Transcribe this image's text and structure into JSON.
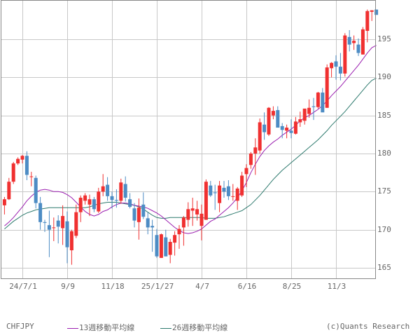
{
  "chart_data": {
    "type": "candlestick",
    "symbol": "CHFJPY",
    "title": "",
    "xlabel": "",
    "ylabel": "",
    "ylim": [
      163.6,
      200.2
    ],
    "y_ticks": [
      165,
      170,
      175,
      180,
      185,
      190,
      195
    ],
    "x_ticks": [
      {
        "label": "24/7/1",
        "index": 4
      },
      {
        "label": "9/9",
        "index": 14
      },
      {
        "label": "11/18",
        "index": 24
      },
      {
        "label": "25/1/27",
        "index": 34
      },
      {
        "label": "4/7",
        "index": 44
      },
      {
        "label": "6/16",
        "index": 54
      },
      {
        "label": "8/25",
        "index": 64
      },
      {
        "label": "11/3",
        "index": 74
      }
    ],
    "grid": true,
    "up_color": "#f03030",
    "down_color": "#4d8cc4",
    "ma13_color": "#9b1fb0",
    "ma26_color": "#2e7a6e",
    "ohlc": [
      [
        173.2,
        174.3,
        172.0,
        174.0
      ],
      [
        174.0,
        176.8,
        173.9,
        176.3
      ],
      [
        176.3,
        178.9,
        176.0,
        178.7
      ],
      [
        178.7,
        179.5,
        178.5,
        179.3
      ],
      [
        179.2,
        179.8,
        178.7,
        179.7
      ],
      [
        179.7,
        180.3,
        176.5,
        177.2
      ],
      [
        177.0,
        177.6,
        175.7,
        177.0
      ],
      [
        176.8,
        177.1,
        172.8,
        173.5
      ],
      [
        173.5,
        174.3,
        170.0,
        171.0
      ],
      [
        171.0,
        171.3,
        169.7,
        170.9
      ],
      [
        170.6,
        172.5,
        166.4,
        170.0
      ],
      [
        170.3,
        171.6,
        168.5,
        170.3
      ],
      [
        171.2,
        171.9,
        168.2,
        170.4
      ],
      [
        170.2,
        173.2,
        168.0,
        171.8
      ],
      [
        171.1,
        172.4,
        165.6,
        167.7
      ],
      [
        167.3,
        170.0,
        165.4,
        169.8
      ],
      [
        169.2,
        173.3,
        168.9,
        172.3
      ],
      [
        172.3,
        174.5,
        171.0,
        174.2
      ],
      [
        173.8,
        174.8,
        173.3,
        174.5
      ],
      [
        173.3,
        174.6,
        171.8,
        174.0
      ],
      [
        174.0,
        174.3,
        172.3,
        172.7
      ],
      [
        172.4,
        175.5,
        172.2,
        175.0
      ],
      [
        175.0,
        177.3,
        174.4,
        175.7
      ],
      [
        175.9,
        176.9,
        173.8,
        174.4
      ],
      [
        174.4,
        175.0,
        172.8,
        173.9
      ],
      [
        173.9,
        175.3,
        172.9,
        173.8
      ],
      [
        173.8,
        176.7,
        173.4,
        176.2
      ],
      [
        176.0,
        177.0,
        173.7,
        174.2
      ],
      [
        174.0,
        174.8,
        172.8,
        173.0
      ],
      [
        172.8,
        173.5,
        170.3,
        171.2
      ],
      [
        171.0,
        174.1,
        168.7,
        172.9
      ],
      [
        173.3,
        174.9,
        171.4,
        171.7
      ],
      [
        171.5,
        172.3,
        169.4,
        170.3
      ],
      [
        170.5,
        171.3,
        167.1,
        170.3
      ],
      [
        169.3,
        170.1,
        166.3,
        166.5
      ],
      [
        166.3,
        169.5,
        166.3,
        169.4
      ],
      [
        169.0,
        170.0,
        166.5,
        166.5
      ],
      [
        166.7,
        168.8,
        165.6,
        168.4
      ],
      [
        168.3,
        169.8,
        166.6,
        169.3
      ],
      [
        169.4,
        170.6,
        167.5,
        170.1
      ],
      [
        170.3,
        171.8,
        167.9,
        171.6
      ],
      [
        171.3,
        173.6,
        170.4,
        172.7
      ],
      [
        172.5,
        174.2,
        170.5,
        172.8
      ],
      [
        172.0,
        173.8,
        171.2,
        172.7
      ],
      [
        170.5,
        173.3,
        168.6,
        172.1
      ],
      [
        171.3,
        176.6,
        171.3,
        176.3
      ],
      [
        175.8,
        176.4,
        174.3,
        174.5
      ],
      [
        174.9,
        175.9,
        172.6,
        174.8
      ],
      [
        173.5,
        176.4,
        172.3,
        175.8
      ],
      [
        175.5,
        176.4,
        174.2,
        175.0
      ],
      [
        175.7,
        176.5,
        173.9,
        174.4
      ],
      [
        174.4,
        176.0,
        173.8,
        174.4
      ],
      [
        173.8,
        175.6,
        172.6,
        175.4
      ],
      [
        174.5,
        177.6,
        174.3,
        177.1
      ],
      [
        177.3,
        178.6,
        175.6,
        178.1
      ],
      [
        178.5,
        180.2,
        178.0,
        180.0
      ],
      [
        180.0,
        182.0,
        177.2,
        180.8
      ],
      [
        180.4,
        184.6,
        180.0,
        184.1
      ],
      [
        183.8,
        185.4,
        181.8,
        182.8
      ],
      [
        182.5,
        186.1,
        182.3,
        186.0
      ],
      [
        185.0,
        186.2,
        184.5,
        185.6
      ],
      [
        185.7,
        186.2,
        183.8,
        183.4
      ],
      [
        183.6,
        184.0,
        182.0,
        183.1
      ],
      [
        183.0,
        183.8,
        182.0,
        183.4
      ],
      [
        183.0,
        184.5,
        182.0,
        182.7
      ],
      [
        182.6,
        184.8,
        182.5,
        184.2
      ],
      [
        184.1,
        185.5,
        183.5,
        184.5
      ],
      [
        184.3,
        185.8,
        183.8,
        185.9
      ],
      [
        185.2,
        187.1,
        184.7,
        186.0
      ],
      [
        186.2,
        187.3,
        184.4,
        186.1
      ],
      [
        186.1,
        188.1,
        185.9,
        188.0
      ],
      [
        188.0,
        188.6,
        185.7,
        185.4
      ],
      [
        186.0,
        191.7,
        186.0,
        191.3
      ],
      [
        191.2,
        192.0,
        190.0,
        191.9
      ],
      [
        192.1,
        192.9,
        189.7,
        191.4
      ],
      [
        191.4,
        193.2,
        189.6,
        190.5
      ],
      [
        190.5,
        195.8,
        190.1,
        195.5
      ],
      [
        195.3,
        196.2,
        193.4,
        194.3
      ],
      [
        194.5,
        195.5,
        193.6,
        194.8
      ],
      [
        194.3,
        195.1,
        192.8,
        193.2
      ],
      [
        193.0,
        196.6,
        193.0,
        196.3
      ],
      [
        196.1,
        198.9,
        194.6,
        198.7
      ],
      [
        198.6,
        198.8,
        197.4,
        198.8
      ],
      [
        198.9,
        198.9,
        198.4,
        198.2
      ]
    ],
    "ma13": [
      170.5,
      171.0,
      171.6,
      172.3,
      173.0,
      173.8,
      174.4,
      174.9,
      175.2,
      175.3,
      175.2,
      175.0,
      175.0,
      174.9,
      174.6,
      174.2,
      173.6,
      173.0,
      172.4,
      172.0,
      171.8,
      172.0,
      172.4,
      172.6,
      173.0,
      173.3,
      173.5,
      173.5,
      173.4,
      173.2,
      173.1,
      173.0,
      172.8,
      172.5,
      172.2,
      171.8,
      171.3,
      170.8,
      170.3,
      169.9,
      169.6,
      169.5,
      169.6,
      169.8,
      170.1,
      170.6,
      171.1,
      171.4,
      171.9,
      172.4,
      172.9,
      173.5,
      174.2,
      175.1,
      176.2,
      177.5,
      178.6,
      179.6,
      180.4,
      181.0,
      181.5,
      181.9,
      182.4,
      182.8,
      183.2,
      183.7,
      184.3,
      184.7,
      185.0,
      185.4,
      185.8,
      186.3,
      186.9,
      187.6,
      188.2,
      188.8,
      189.5,
      190.2,
      190.9,
      191.6,
      192.4,
      193.2,
      193.9,
      194.2
    ],
    "ma26": [
      170.1,
      170.6,
      171.1,
      171.5,
      171.9,
      172.2,
      172.4,
      172.6,
      172.7,
      172.8,
      172.9,
      172.9,
      172.9,
      172.9,
      172.9,
      172.9,
      172.9,
      172.9,
      172.9,
      173.0,
      173.2,
      173.4,
      173.5,
      173.6,
      173.6,
      173.6,
      173.5,
      173.4,
      173.3,
      173.2,
      173.0,
      172.7,
      172.3,
      171.9,
      171.6,
      171.5,
      171.5,
      171.6,
      171.6,
      171.6,
      171.6,
      171.6,
      171.6,
      171.6,
      171.6,
      171.5,
      171.5,
      171.5,
      171.6,
      171.7,
      171.9,
      172.1,
      172.3,
      172.5,
      172.9,
      173.3,
      173.9,
      174.5,
      175.2,
      175.9,
      176.6,
      177.2,
      177.8,
      178.3,
      178.8,
      179.3,
      179.8,
      180.3,
      180.8,
      181.3,
      181.8,
      182.4,
      183.0,
      183.7,
      184.3,
      184.9,
      185.5,
      186.2,
      186.9,
      187.6,
      188.3,
      189.0,
      189.6,
      189.9
    ]
  },
  "footer": {
    "symbol": "CHFJPY",
    "ma13_label": "13週移動平均線",
    "ma26_label": "26週移動平均線",
    "copyright": "(c)Quants Research"
  },
  "axis": {
    "x_labels": [
      "24/7/1",
      "9/9",
      "11/18",
      "25/1/27",
      "4/7",
      "6/16",
      "8/25",
      "11/3"
    ],
    "y_labels": [
      "195",
      "190",
      "185",
      "180",
      "175",
      "170",
      "165"
    ]
  }
}
